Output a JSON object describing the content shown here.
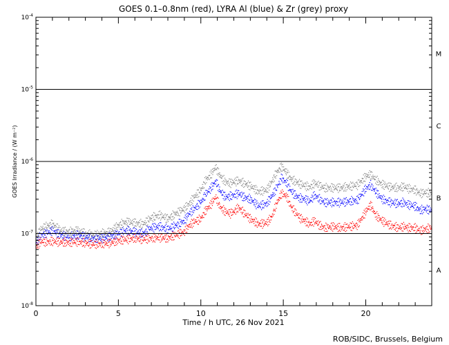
{
  "chart_data": {
    "type": "scatter",
    "title": "GOES 0.1–0.8nm (red), LYRA Al (blue) & Zr (grey) proxy",
    "xlabel": "Time / h UTC, 26 Nov 2021",
    "ylabel": "GOES Irradiance / (W m⁻²)",
    "credit": "ROB/SIDC, Brussels, Belgium",
    "yscale": "log",
    "xlim": [
      0,
      24
    ],
    "ylim": [
      1e-08,
      0.0001
    ],
    "grid": "horizontal lines at class boundaries",
    "x_ticks": [
      0,
      5,
      10,
      15,
      20
    ],
    "x_tick_labels": [
      "0",
      "5",
      "10",
      "15",
      "20"
    ],
    "y_ticks": [
      1e-08,
      1e-07,
      1e-06,
      1e-05,
      0.0001
    ],
    "y_tick_bases": [
      "10",
      "10",
      "10",
      "10",
      "10"
    ],
    "y_tick_exps": [
      "-8",
      "-7",
      "-6",
      "-5",
      "-4"
    ],
    "y_gridlines": [
      1e-07,
      1e-06,
      1e-05
    ],
    "flare_classes": [
      {
        "label": "A",
        "mid": 3.16e-08
      },
      {
        "label": "B",
        "mid": 3.16e-07
      },
      {
        "label": "C",
        "mid": 3.16e-06
      },
      {
        "label": "M",
        "mid": 3.16e-05
      }
    ],
    "colors": {
      "goes": "#ff0000",
      "lyra_al": "#0000ff",
      "lyra_zr": "#808080"
    },
    "series": [
      {
        "name": "GOES 0.1–0.8nm",
        "color": "#ff0000",
        "x": [
          0,
          0.3,
          0.6,
          1,
          1.5,
          2,
          2.5,
          3,
          3.5,
          4,
          4.5,
          5,
          5.5,
          6,
          6.5,
          7,
          7.5,
          8,
          8.5,
          9,
          9.3,
          9.6,
          10,
          10.3,
          10.6,
          10.9,
          11.2,
          11.5,
          11.8,
          12,
          12.3,
          12.6,
          13,
          13.5,
          14,
          14.3,
          14.6,
          14.9,
          15.2,
          15.5,
          15.8,
          16,
          16.3,
          16.6,
          16.9,
          17.2,
          17.5,
          18,
          18.5,
          19,
          19.5,
          20,
          20.3,
          20.6,
          21,
          21.5,
          22,
          22.3,
          22.6,
          23,
          23.3,
          23.6,
          24
        ],
        "y": [
          6.5e-08,
          7.8e-08,
          7.6e-08,
          7.8e-08,
          7.6e-08,
          7.5e-08,
          7.7e-08,
          7.4e-08,
          7.1e-08,
          7.2e-08,
          7.4e-08,
          8e-08,
          8.3e-08,
          8.6e-08,
          8.3e-08,
          8.6e-08,
          8.8e-08,
          8.6e-08,
          9.6e-08,
          1.05e-07,
          1.3e-07,
          1.45e-07,
          1.6e-07,
          2.1e-07,
          2.5e-07,
          3.2e-07,
          2.3e-07,
          2e-07,
          1.9e-07,
          2e-07,
          2.3e-07,
          1.95e-07,
          1.6e-07,
          1.35e-07,
          1.4e-07,
          1.7e-07,
          2.6e-07,
          3.6e-07,
          3.3e-07,
          2.3e-07,
          1.9e-07,
          1.65e-07,
          1.5e-07,
          1.35e-07,
          1.5e-07,
          1.3e-07,
          1.2e-07,
          1.25e-07,
          1.2e-07,
          1.25e-07,
          1.3e-07,
          2e-07,
          2.5e-07,
          1.8e-07,
          1.5e-07,
          1.3e-07,
          1.2e-07,
          1.25e-07,
          1.2e-07,
          1.2e-07,
          1.1e-07,
          1.15e-07,
          1.2e-07
        ]
      },
      {
        "name": "LYRA Al",
        "color": "#0000ff",
        "x": [
          0,
          0.3,
          0.6,
          1,
          1.5,
          2,
          2.5,
          3,
          3.5,
          4,
          4.5,
          5,
          5.5,
          6,
          6.5,
          7,
          7.5,
          8,
          8.5,
          9,
          9.3,
          9.6,
          10,
          10.3,
          10.6,
          10.9,
          11.2,
          11.5,
          11.8,
          12,
          12.3,
          12.6,
          13,
          13.5,
          14,
          14.3,
          14.6,
          14.9,
          15.2,
          15.5,
          15.8,
          16,
          16.3,
          16.6,
          16.9,
          17.2,
          17.5,
          18,
          18.5,
          19,
          19.5,
          20,
          20.3,
          20.6,
          21,
          21.5,
          22,
          22.3,
          22.6,
          23,
          23.3,
          23.6,
          24
        ],
        "y": [
          7.5e-08,
          9.5e-08,
          1e-07,
          1.1e-07,
          9.5e-08,
          9e-08,
          9.5e-08,
          9e-08,
          8.5e-08,
          8.6e-08,
          9e-08,
          1e-07,
          1.1e-07,
          1.05e-07,
          1e-07,
          1.2e-07,
          1.25e-07,
          1.15e-07,
          1.3e-07,
          1.5e-07,
          1.9e-07,
          2.2e-07,
          2.7e-07,
          3.5e-07,
          4.2e-07,
          5.3e-07,
          3.8e-07,
          3.2e-07,
          3.3e-07,
          3.4e-07,
          3.6e-07,
          3.2e-07,
          3e-07,
          2.4e-07,
          2.6e-07,
          3.3e-07,
          4.3e-07,
          5.9e-07,
          5e-07,
          3.8e-07,
          3.3e-07,
          3.1e-07,
          3e-07,
          2.8e-07,
          3.4e-07,
          3e-07,
          2.7e-07,
          2.7e-07,
          2.7e-07,
          2.8e-07,
          2.9e-07,
          4.2e-07,
          4.7e-07,
          3.8e-07,
          3e-07,
          2.7e-07,
          2.6e-07,
          2.7e-07,
          2.5e-07,
          2.4e-07,
          2.1e-07,
          2.2e-07,
          2.1e-07
        ]
      },
      {
        "name": "LYRA Zr",
        "color": "#808080",
        "x": [
          0,
          0.3,
          0.6,
          1,
          1.5,
          2,
          2.5,
          3,
          3.5,
          4,
          4.5,
          5,
          5.5,
          6,
          6.5,
          7,
          7.5,
          8,
          8.5,
          9,
          9.3,
          9.6,
          10,
          10.3,
          10.6,
          10.9,
          11.2,
          11.5,
          11.8,
          12,
          12.3,
          12.6,
          13,
          13.5,
          14,
          14.3,
          14.6,
          14.9,
          15.2,
          15.5,
          15.8,
          16,
          16.3,
          16.6,
          16.9,
          17.2,
          17.5,
          18,
          18.5,
          19,
          19.5,
          20,
          20.3,
          20.6,
          21,
          21.5,
          22,
          22.3,
          22.6,
          23,
          23.3,
          23.6,
          24
        ],
        "y": [
          8.5e-08,
          1.15e-07,
          1.25e-07,
          1.35e-07,
          1.1e-07,
          1.05e-07,
          1.1e-07,
          1e-07,
          9.5e-08,
          1e-07,
          1.05e-07,
          1.3e-07,
          1.45e-07,
          1.4e-07,
          1.35e-07,
          1.65e-07,
          1.8e-07,
          1.6e-07,
          1.9e-07,
          2.2e-07,
          2.6e-07,
          3.2e-07,
          4e-07,
          5.5e-07,
          6.5e-07,
          8.3e-07,
          6.2e-07,
          5.2e-07,
          5e-07,
          5.2e-07,
          5.4e-07,
          5e-07,
          4.6e-07,
          3.8e-07,
          4e-07,
          5.2e-07,
          7e-07,
          8.5e-07,
          7e-07,
          5.6e-07,
          5.2e-07,
          4.9e-07,
          4.6e-07,
          4.4e-07,
          5e-07,
          4.6e-07,
          4.3e-07,
          4.3e-07,
          4.3e-07,
          4.5e-07,
          4.7e-07,
          6.2e-07,
          6.6e-07,
          5.6e-07,
          4.8e-07,
          4.4e-07,
          4.3e-07,
          4.5e-07,
          4.2e-07,
          4e-07,
          3.6e-07,
          3.7e-07,
          3.6e-07
        ]
      }
    ]
  }
}
